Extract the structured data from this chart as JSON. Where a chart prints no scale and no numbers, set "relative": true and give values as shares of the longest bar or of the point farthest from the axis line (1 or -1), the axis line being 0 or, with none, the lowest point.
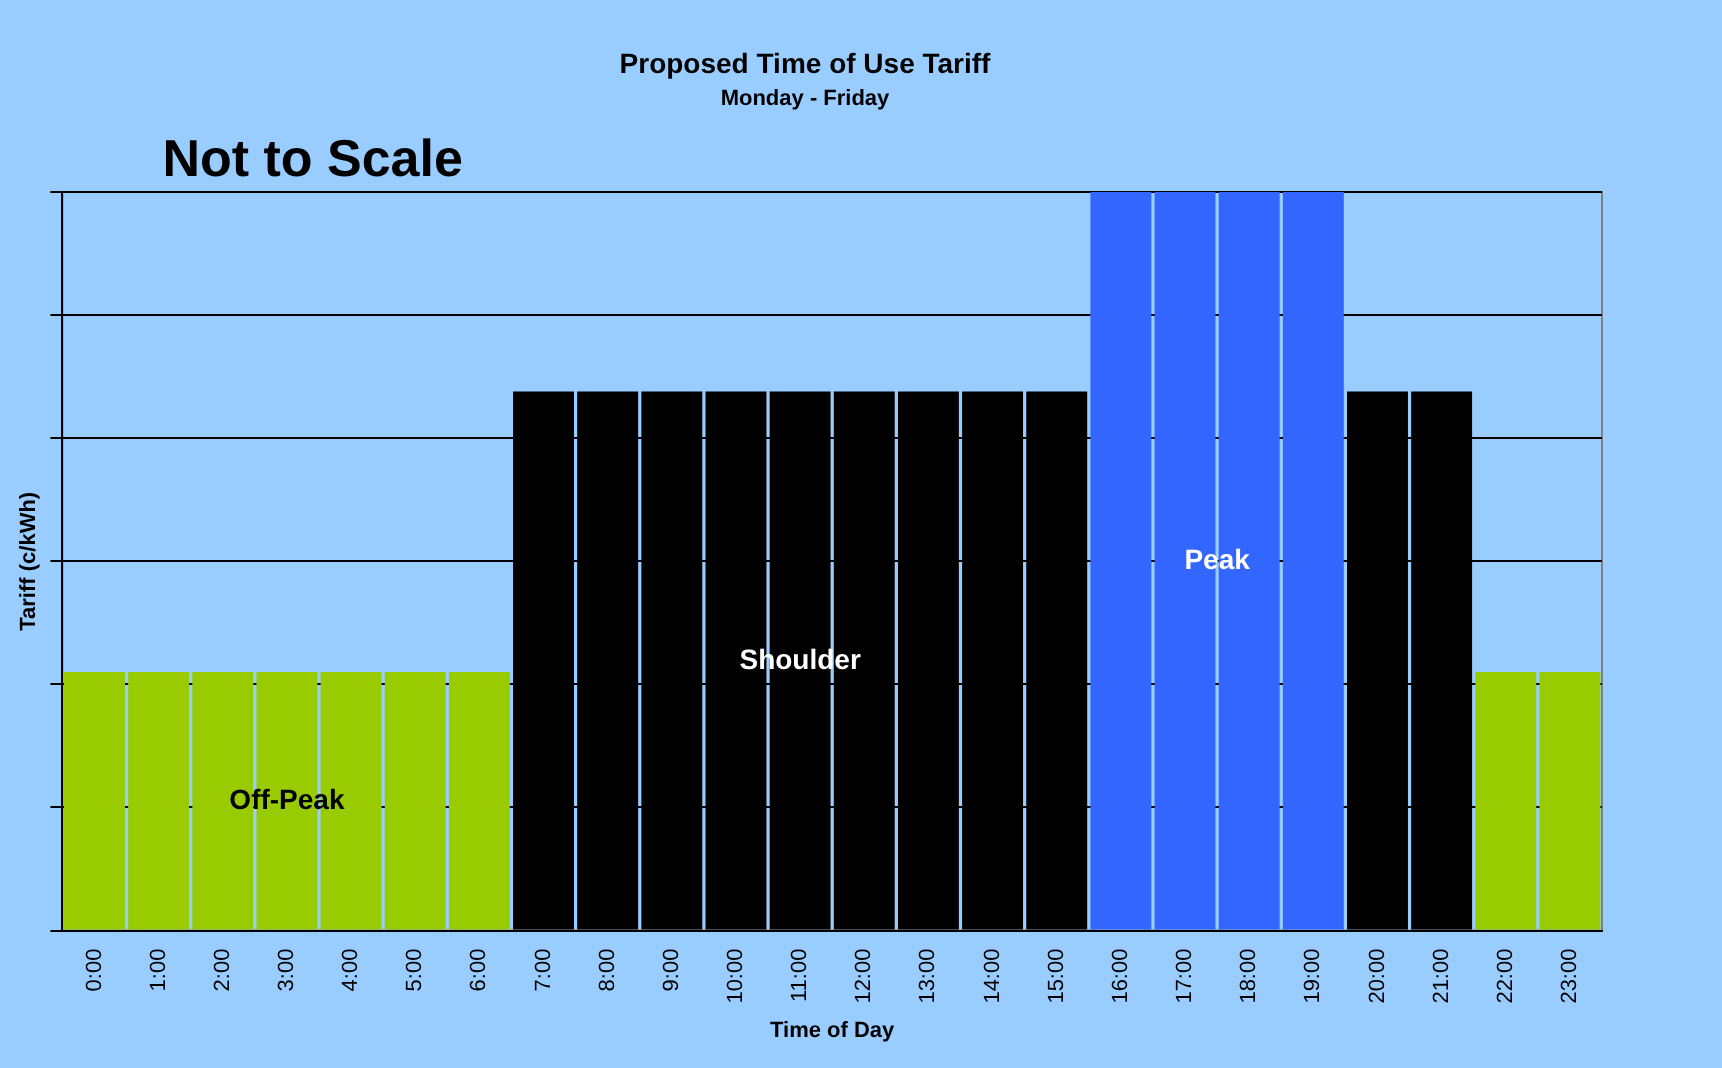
{
  "chart_data": {
    "type": "bar",
    "title": "Proposed Time of Use Tariff",
    "subtitle": "Monday - Friday",
    "xlabel": "Time of Day",
    "ylabel": "Tariff (c/kWh)",
    "relative": true,
    "grid": "y",
    "legend": false,
    "categories": [
      "0:00",
      "1:00",
      "2:00",
      "3:00",
      "4:00",
      "5:00",
      "6:00",
      "7:00",
      "8:00",
      "9:00",
      "10:00",
      "11:00",
      "12:00",
      "13:00",
      "14:00",
      "15:00",
      "16:00",
      "17:00",
      "18:00",
      "19:00",
      "20:00",
      "21:00",
      "22:00",
      "23:00"
    ],
    "values": [
      0.35,
      0.35,
      0.35,
      0.35,
      0.35,
      0.35,
      0.35,
      0.73,
      0.73,
      0.73,
      0.73,
      0.73,
      0.73,
      0.73,
      0.73,
      0.73,
      1,
      1,
      1,
      1,
      0.73,
      0.73,
      0.35,
      0.35
    ],
    "colors": [
      "#99cc00",
      "#99cc00",
      "#99cc00",
      "#99cc00",
      "#99cc00",
      "#99cc00",
      "#99cc00",
      "#000000",
      "#000000",
      "#000000",
      "#000000",
      "#000000",
      "#000000",
      "#000000",
      "#000000",
      "#000000",
      "#3366ff",
      "#3366ff",
      "#3366ff",
      "#3366ff",
      "#000000",
      "#000000",
      "#99cc00",
      "#99cc00"
    ],
    "annotations": [
      "Not to Scale",
      "Off-Peak",
      "Shoulder",
      "Peak"
    ]
  }
}
